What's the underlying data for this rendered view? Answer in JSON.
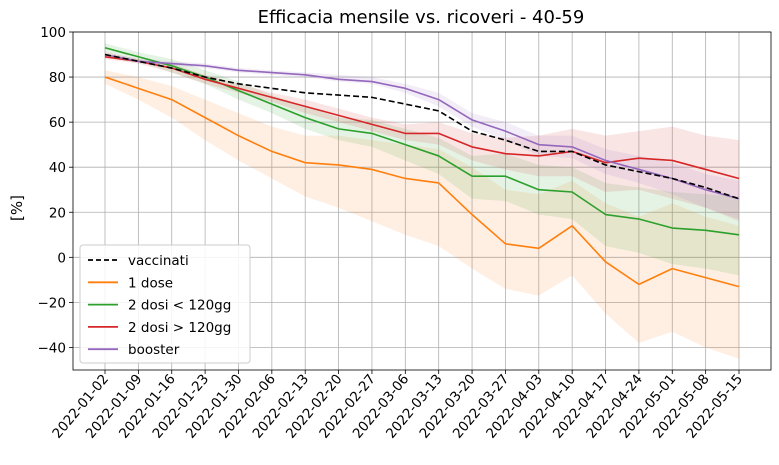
{
  "chart_data": {
    "type": "line",
    "title": "Efficacia mensile vs. ricoveri - 40-59",
    "xlabel": "",
    "ylabel": "[%]",
    "ylim": [
      -50,
      100
    ],
    "yticks": [
      100,
      80,
      60,
      40,
      20,
      0,
      -20,
      -40
    ],
    "ytick_labels": [
      "100",
      "80",
      "60",
      "40",
      "20",
      "0",
      "−20",
      "−40"
    ],
    "grid": true,
    "legend_position": "lower-left",
    "categories": [
      "2022-01-02",
      "2022-01-09",
      "2022-01-16",
      "2022-01-23",
      "2022-01-30",
      "2022-02-06",
      "2022-02-13",
      "2022-02-20",
      "2022-02-27",
      "2022-03-06",
      "2022-03-13",
      "2022-03-20",
      "2022-03-27",
      "2022-04-03",
      "2022-04-10",
      "2022-04-17",
      "2022-04-24",
      "2022-05-01",
      "2022-05-08",
      "2022-05-15"
    ],
    "series": [
      {
        "name": "vaccinati",
        "color": "#000000",
        "dashed": true,
        "values": [
          90,
          87,
          84,
          80,
          77,
          75,
          73,
          72,
          71,
          68,
          65,
          56,
          52,
          47,
          47,
          41,
          38,
          35,
          31,
          26
        ],
        "band": null
      },
      {
        "name": "1 dose",
        "color": "#ff7f0e",
        "dashed": false,
        "values": [
          80,
          75,
          70,
          62,
          54,
          47,
          42,
          41,
          39,
          35,
          33,
          19,
          6,
          4,
          14,
          -2,
          -12,
          -5,
          -9,
          -13
        ],
        "band": {
          "color": "#ff7f0e",
          "lower": [
            77,
            70,
            62,
            52,
            43,
            35,
            27,
            22,
            16,
            10,
            5,
            -5,
            -14,
            -17,
            -8,
            -25,
            -38,
            -33,
            -40,
            -45
          ],
          "upper": [
            83,
            80,
            76,
            70,
            64,
            58,
            54,
            54,
            52,
            50,
            48,
            40,
            30,
            28,
            34,
            24,
            18,
            24,
            18,
            14
          ]
        }
      },
      {
        "name": "2 dosi < 120gg",
        "color": "#2ca02c",
        "dashed": false,
        "values": [
          93,
          89,
          85,
          80,
          74,
          68,
          62,
          57,
          55,
          50,
          45,
          36,
          36,
          30,
          29,
          19,
          17,
          13,
          12,
          10
        ],
        "band": {
          "color": "#2ca02c",
          "lower": [
            91,
            87,
            82,
            77,
            70,
            64,
            57,
            52,
            49,
            43,
            37,
            26,
            25,
            19,
            17,
            5,
            2,
            -3,
            -5,
            -8
          ],
          "upper": [
            95,
            91,
            88,
            83,
            78,
            72,
            67,
            62,
            61,
            57,
            53,
            45,
            46,
            41,
            40,
            33,
            31,
            29,
            28,
            27
          ]
        }
      },
      {
        "name": "2 dosi > 120gg",
        "color": "#d62728",
        "dashed": false,
        "values": [
          89,
          87,
          84,
          79,
          75,
          71,
          67,
          63,
          59,
          55,
          55,
          49,
          46,
          45,
          47,
          42,
          44,
          43,
          39,
          35
        ],
        "band": {
          "color": "#d62728",
          "lower": [
            88,
            86,
            82,
            77,
            73,
            69,
            64,
            60,
            56,
            52,
            50,
            43,
            39,
            36,
            36,
            29,
            30,
            26,
            22,
            16
          ],
          "upper": [
            91,
            88,
            86,
            81,
            77,
            73,
            70,
            66,
            62,
            59,
            60,
            55,
            53,
            54,
            57,
            54,
            56,
            58,
            54,
            52
          ]
        }
      },
      {
        "name": "booster",
        "color": "#9467bd",
        "dashed": false,
        "values": [
          90,
          87,
          86,
          85,
          83,
          82,
          81,
          79,
          78,
          75,
          70,
          61,
          56,
          50,
          49,
          43,
          39,
          35,
          30,
          26
        ],
        "band": {
          "color": "#9467bd",
          "lower": [
            89,
            86,
            85,
            84,
            82,
            81,
            80,
            78,
            77,
            73,
            67,
            58,
            52,
            45,
            44,
            37,
            33,
            28,
            22,
            17
          ],
          "upper": [
            91,
            88,
            87,
            86,
            84,
            83,
            82,
            81,
            80,
            77,
            73,
            64,
            60,
            54,
            54,
            48,
            45,
            42,
            37,
            34
          ]
        }
      }
    ]
  }
}
